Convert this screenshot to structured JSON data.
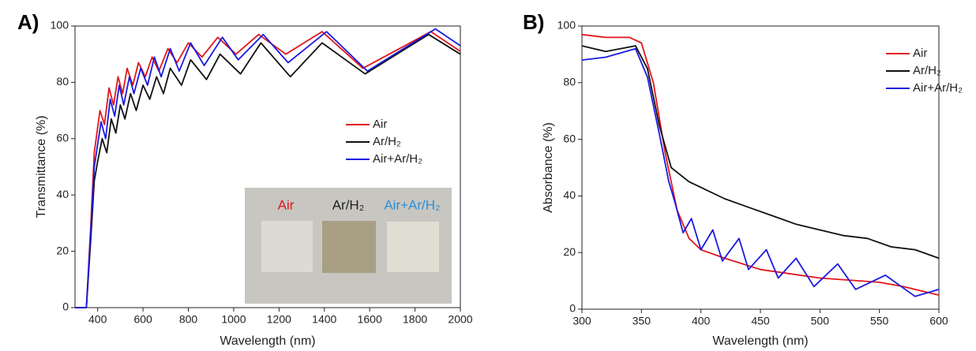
{
  "chart_data": [
    {
      "type": "line",
      "panel": "A)",
      "x_label": "Wavelength (nm)",
      "y_label": "Transmittance (%)",
      "xlim": [
        300,
        2000
      ],
      "xticks": [
        400,
        600,
        800,
        1000,
        1200,
        1400,
        1600,
        1800,
        2000
      ],
      "ylim": [
        0,
        100
      ],
      "yticks": [
        0,
        20,
        40,
        60,
        80,
        100
      ],
      "inset_labels": [
        "Air",
        "Ar/H₂",
        "Air+Ar/H₂"
      ],
      "series": [
        {
          "name": "Air",
          "color": "#e3161b",
          "x": [
            300,
            350,
            370,
            385,
            400,
            410,
            430,
            450,
            470,
            490,
            510,
            530,
            555,
            580,
            610,
            640,
            670,
            710,
            750,
            800,
            860,
            930,
            1010,
            1110,
            1230,
            1390,
            1570,
            1870,
            2000
          ],
          "values": [
            0,
            0,
            30,
            55,
            64,
            70,
            65,
            78,
            72,
            82,
            76,
            85,
            79,
            87,
            82,
            89,
            84,
            92,
            87,
            94,
            89,
            96,
            90,
            97,
            90,
            98,
            85,
            98,
            91
          ]
        },
        {
          "name": "Ar/H₂",
          "color": "#111111",
          "x": [
            300,
            350,
            370,
            385,
            400,
            420,
            440,
            460,
            480,
            500,
            520,
            545,
            570,
            600,
            630,
            660,
            690,
            720,
            770,
            810,
            880,
            940,
            1030,
            1120,
            1250,
            1390,
            1580,
            1860,
            2000
          ],
          "values": [
            0,
            0,
            25,
            45,
            52,
            60,
            55,
            67,
            62,
            72,
            67,
            76,
            70,
            79,
            74,
            82,
            76,
            85,
            79,
            88,
            81,
            90,
            83,
            94,
            82,
            94,
            83,
            97,
            90
          ]
        },
        {
          "name": "Air+Ar/H₂",
          "color": "#1a1ae0",
          "x": [
            300,
            350,
            370,
            385,
            400,
            415,
            435,
            455,
            475,
            495,
            515,
            540,
            560,
            590,
            620,
            650,
            680,
            720,
            760,
            810,
            870,
            950,
            1020,
            1130,
            1240,
            1410,
            1590,
            1890,
            2000
          ],
          "values": [
            0,
            0,
            28,
            50,
            58,
            66,
            60,
            74,
            68,
            79,
            72,
            82,
            76,
            85,
            79,
            89,
            82,
            92,
            84,
            94,
            86,
            96,
            88,
            97,
            87,
            98,
            84,
            99,
            93
          ]
        }
      ]
    },
    {
      "type": "line",
      "panel": "B)",
      "x_label": "Wavelength (nm)",
      "y_label": "Absorbance (%)",
      "xlim": [
        300,
        600
      ],
      "xticks": [
        300,
        350,
        400,
        450,
        500,
        550,
        600
      ],
      "ylim": [
        0,
        100
      ],
      "yticks": [
        0,
        20,
        40,
        60,
        80,
        100
      ],
      "series": [
        {
          "name": "Air",
          "color": "#e3161b",
          "x": [
            300,
            320,
            340,
            350,
            360,
            370,
            380,
            390,
            400,
            420,
            450,
            500,
            550,
            570,
            600
          ],
          "values": [
            97,
            96,
            96,
            94,
            80,
            55,
            35,
            25,
            21,
            18,
            14,
            11,
            9.5,
            8,
            5
          ]
        },
        {
          "name": "Ar/H₂",
          "color": "#111111",
          "x": [
            300,
            320,
            345,
            355,
            365,
            375,
            390,
            400,
            420,
            440,
            460,
            480,
            500,
            520,
            540,
            560,
            580,
            600
          ],
          "values": [
            93,
            91,
            93,
            85,
            65,
            50,
            45,
            43,
            39,
            36,
            33,
            30,
            28,
            26,
            25,
            22,
            21,
            18
          ]
        },
        {
          "name": "Air+Ar/H₂",
          "color": "#1a1ae0",
          "x": [
            300,
            320,
            345,
            355,
            365,
            373,
            378,
            385,
            392,
            400,
            410,
            418,
            432,
            440,
            455,
            465,
            480,
            495,
            515,
            530,
            555,
            580,
            600
          ],
          "values": [
            88,
            89,
            92,
            82,
            62,
            45,
            38,
            27,
            32,
            21,
            28,
            17,
            25,
            14,
            21,
            11,
            18,
            8,
            16,
            7,
            12,
            4.5,
            7
          ]
        }
      ]
    }
  ]
}
